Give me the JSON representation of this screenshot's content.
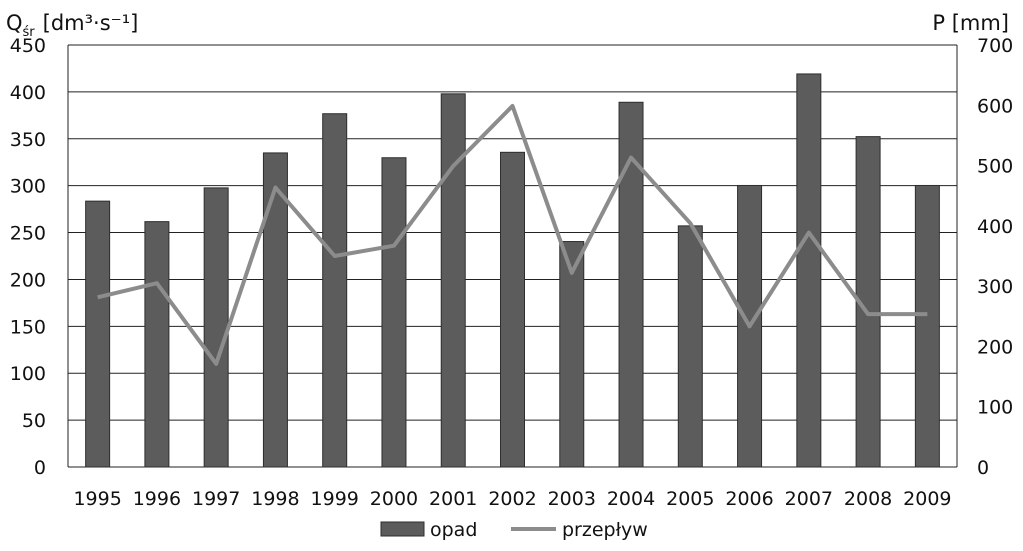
{
  "chart_data": {
    "type": "bar",
    "categories": [
      "1995",
      "1996",
      "1997",
      "1998",
      "1999",
      "2000",
      "2001",
      "2002",
      "2003",
      "2004",
      "2005",
      "2006",
      "2007",
      "2008",
      "2009"
    ],
    "series": [
      {
        "name": "opad",
        "type": "bar",
        "axis": "right",
        "values": [
          441,
          407,
          463,
          521,
          586,
          513,
          619,
          522,
          374,
          605,
          400,
          467,
          652,
          548,
          467
        ]
      },
      {
        "name": "przepływ",
        "type": "line",
        "axis": "left",
        "values": [
          181,
          196,
          110,
          298,
          225,
          236,
          321,
          385,
          207,
          330,
          260,
          150,
          250,
          163,
          163
        ]
      }
    ],
    "left_axis": {
      "label_main": "Q",
      "label_sub": "śr",
      "label_unit": "[dm³·s⁻¹]",
      "ylim": [
        0,
        450
      ],
      "ticks": [
        "0",
        "50",
        "100",
        "150",
        "200",
        "250",
        "300",
        "350",
        "400",
        "450"
      ]
    },
    "right_axis": {
      "label": "P [mm]",
      "ylim": [
        0,
        700
      ],
      "ticks": [
        "0",
        "100",
        "200",
        "300",
        "400",
        "500",
        "600",
        "700"
      ]
    },
    "grid": true,
    "legend_position": "bottom",
    "colors": {
      "bar": "#5c5c5c",
      "bar_edge": "#2e2e2e",
      "line": "#8c8c8c",
      "grid": "#222222"
    }
  }
}
